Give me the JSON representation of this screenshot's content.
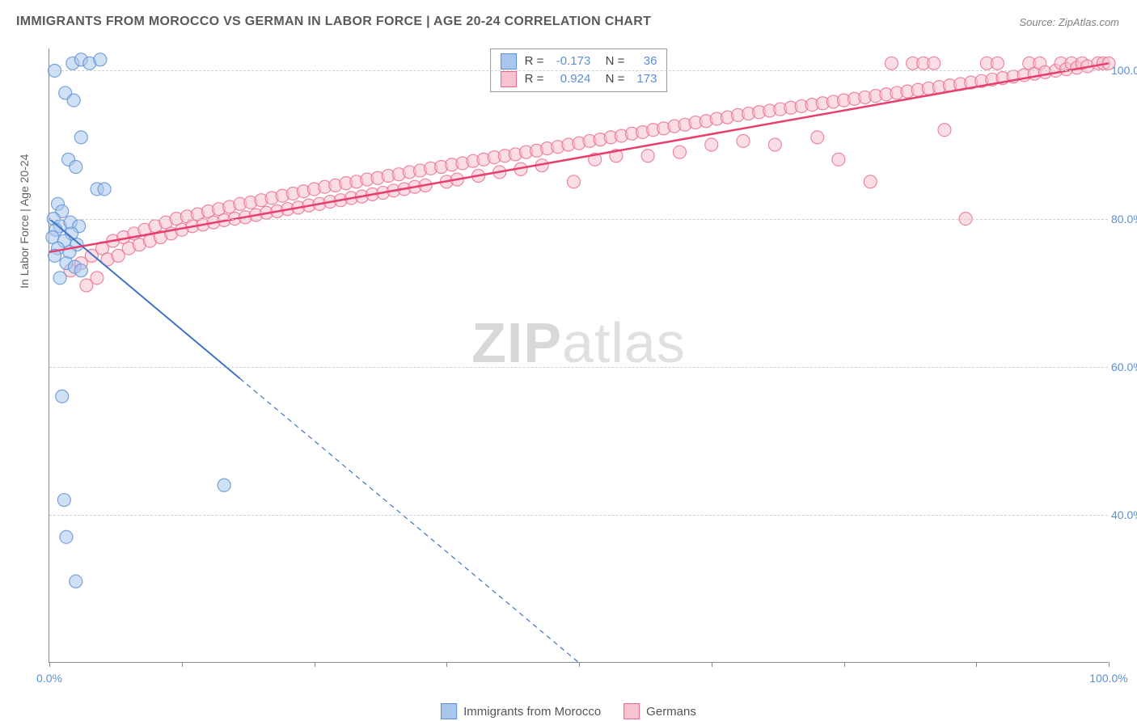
{
  "title": "IMMIGRANTS FROM MOROCCO VS GERMAN IN LABOR FORCE | AGE 20-24 CORRELATION CHART",
  "source": "Source: ZipAtlas.com",
  "y_axis_label": "In Labor Force | Age 20-24",
  "watermark": {
    "bold": "ZIP",
    "rest": "atlas"
  },
  "chart": {
    "type": "scatter-with-trend",
    "xlim": [
      0,
      100
    ],
    "ylim": [
      20,
      103
    ],
    "x_ticks": [
      0,
      12.5,
      25,
      37.5,
      50,
      62.5,
      75,
      87.5,
      100
    ],
    "x_tick_labels": {
      "0": "0.0%",
      "100": "100.0%"
    },
    "y_gridlines": [
      40,
      60,
      80,
      100
    ],
    "y_tick_labels": {
      "40": "40.0%",
      "60": "60.0%",
      "80": "80.0%",
      "100": "100.0%"
    },
    "background_color": "#ffffff",
    "grid_color": "#d0d0d0",
    "marker_radius": 8,
    "marker_opacity": 0.55,
    "series": [
      {
        "name": "Immigrants from Morocco",
        "fill_color": "#a9c7ec",
        "stroke_color": "#5b8fd6",
        "trend": {
          "x1": 0,
          "y1": 80,
          "x2": 50,
          "y2": 20,
          "solid_until_x": 18,
          "color": "#3f73c4",
          "width": 2
        },
        "stats": {
          "R": "-0.173",
          "N": "36"
        },
        "points": [
          [
            0.5,
            100
          ],
          [
            2.2,
            101
          ],
          [
            3.0,
            101.5
          ],
          [
            3.8,
            101
          ],
          [
            4.8,
            101.5
          ],
          [
            1.5,
            97
          ],
          [
            2.3,
            96
          ],
          [
            3.0,
            91
          ],
          [
            1.8,
            88
          ],
          [
            2.5,
            87
          ],
          [
            4.5,
            84
          ],
          [
            5.2,
            84
          ],
          [
            0.8,
            82
          ],
          [
            1.2,
            81
          ],
          [
            0.4,
            80
          ],
          [
            1.0,
            79
          ],
          [
            2.0,
            79.5
          ],
          [
            2.8,
            79
          ],
          [
            0.6,
            78.5
          ],
          [
            2.1,
            78
          ],
          [
            0.3,
            77.5
          ],
          [
            1.4,
            77
          ],
          [
            2.6,
            76.5
          ],
          [
            0.8,
            76
          ],
          [
            1.9,
            75.5
          ],
          [
            0.5,
            75
          ],
          [
            1.6,
            74
          ],
          [
            2.4,
            73.5
          ],
          [
            3.0,
            73
          ],
          [
            1.0,
            72
          ],
          [
            1.2,
            56
          ],
          [
            1.4,
            42
          ],
          [
            1.6,
            37
          ],
          [
            2.5,
            31
          ],
          [
            16.5,
            44
          ]
        ]
      },
      {
        "name": "Germans",
        "fill_color": "#f7c3d0",
        "stroke_color": "#e86a8a",
        "trend": {
          "x1": 0,
          "y1": 75.5,
          "x2": 100,
          "y2": 101,
          "solid_until_x": 100,
          "color": "#e83e6b",
          "width": 2.5
        },
        "stats": {
          "R": "0.924",
          "N": "173"
        },
        "points": [
          [
            2,
            73
          ],
          [
            3,
            74
          ],
          [
            3.5,
            71
          ],
          [
            4,
            75
          ],
          [
            4.5,
            72
          ],
          [
            5,
            76
          ],
          [
            5.5,
            74.5
          ],
          [
            6,
            77
          ],
          [
            6.5,
            75
          ],
          [
            7,
            77.5
          ],
          [
            7.5,
            76
          ],
          [
            8,
            78
          ],
          [
            8.5,
            76.5
          ],
          [
            9,
            78.5
          ],
          [
            9.5,
            77
          ],
          [
            10,
            79
          ],
          [
            10.5,
            77.5
          ],
          [
            11,
            79.5
          ],
          [
            11.5,
            78
          ],
          [
            12,
            80
          ],
          [
            12.5,
            78.5
          ],
          [
            13,
            80.3
          ],
          [
            13.5,
            79
          ],
          [
            14,
            80.6
          ],
          [
            14.5,
            79.2
          ],
          [
            15,
            81
          ],
          [
            15.5,
            79.5
          ],
          [
            16,
            81.3
          ],
          [
            16.5,
            79.8
          ],
          [
            17,
            81.6
          ],
          [
            17.5,
            80
          ],
          [
            18,
            82
          ],
          [
            18.5,
            80.2
          ],
          [
            19,
            82.2
          ],
          [
            19.5,
            80.5
          ],
          [
            20,
            82.5
          ],
          [
            20.5,
            80.8
          ],
          [
            21,
            82.8
          ],
          [
            21.5,
            81
          ],
          [
            22,
            83.1
          ],
          [
            22.5,
            81.3
          ],
          [
            23,
            83.4
          ],
          [
            23.5,
            81.5
          ],
          [
            24,
            83.7
          ],
          [
            24.5,
            81.8
          ],
          [
            25,
            84
          ],
          [
            25.5,
            82
          ],
          [
            26,
            84.3
          ],
          [
            26.5,
            82.3
          ],
          [
            27,
            84.5
          ],
          [
            27.5,
            82.5
          ],
          [
            28,
            84.8
          ],
          [
            28.5,
            82.8
          ],
          [
            29,
            85
          ],
          [
            29.5,
            83
          ],
          [
            30,
            85.3
          ],
          [
            30.5,
            83.3
          ],
          [
            31,
            85.5
          ],
          [
            31.5,
            83.5
          ],
          [
            32,
            85.8
          ],
          [
            32.5,
            83.8
          ],
          [
            33,
            86
          ],
          [
            33.5,
            84
          ],
          [
            34,
            86.3
          ],
          [
            34.5,
            84.3
          ],
          [
            35,
            86.5
          ],
          [
            35.5,
            84.5
          ],
          [
            36,
            86.8
          ],
          [
            37,
            87
          ],
          [
            37.5,
            85
          ],
          [
            38,
            87.3
          ],
          [
            38.5,
            85.3
          ],
          [
            39,
            87.5
          ],
          [
            40,
            87.8
          ],
          [
            40.5,
            85.8
          ],
          [
            41,
            88
          ],
          [
            42,
            88.3
          ],
          [
            42.5,
            86.3
          ],
          [
            43,
            88.5
          ],
          [
            44,
            88.7
          ],
          [
            44.5,
            86.7
          ],
          [
            45,
            89
          ],
          [
            46,
            89.2
          ],
          [
            46.5,
            87.2
          ],
          [
            47,
            89.5
          ],
          [
            48,
            89.7
          ],
          [
            49,
            90
          ],
          [
            49.5,
            85
          ],
          [
            50,
            90.2
          ],
          [
            51,
            90.5
          ],
          [
            51.5,
            88
          ],
          [
            52,
            90.7
          ],
          [
            53,
            91
          ],
          [
            53.5,
            88.5
          ],
          [
            54,
            91.2
          ],
          [
            55,
            91.5
          ],
          [
            56,
            91.7
          ],
          [
            56.5,
            88.5
          ],
          [
            57,
            92
          ],
          [
            58,
            92.2
          ],
          [
            59,
            92.5
          ],
          [
            59.5,
            89
          ],
          [
            60,
            92.7
          ],
          [
            61,
            93
          ],
          [
            62,
            93.2
          ],
          [
            62.5,
            90
          ],
          [
            63,
            93.5
          ],
          [
            64,
            93.7
          ],
          [
            65,
            94
          ],
          [
            65.5,
            90.5
          ],
          [
            66,
            94.2
          ],
          [
            67,
            94.4
          ],
          [
            68,
            94.6
          ],
          [
            68.5,
            90
          ],
          [
            69,
            94.8
          ],
          [
            70,
            95
          ],
          [
            71,
            95.2
          ],
          [
            72,
            95.4
          ],
          [
            72.5,
            91
          ],
          [
            73,
            95.6
          ],
          [
            74,
            95.8
          ],
          [
            74.5,
            88
          ],
          [
            75,
            96
          ],
          [
            76,
            96.2
          ],
          [
            77,
            96.4
          ],
          [
            77.5,
            85
          ],
          [
            78,
            96.6
          ],
          [
            79,
            96.8
          ],
          [
            79.5,
            101
          ],
          [
            80,
            97
          ],
          [
            81,
            97.2
          ],
          [
            81.5,
            101
          ],
          [
            82,
            97.4
          ],
          [
            82.5,
            101
          ],
          [
            83,
            97.6
          ],
          [
            83.5,
            101
          ],
          [
            84,
            97.8
          ],
          [
            84.5,
            92
          ],
          [
            85,
            98
          ],
          [
            86,
            98.2
          ],
          [
            86.5,
            80
          ],
          [
            87,
            98.4
          ],
          [
            88,
            98.6
          ],
          [
            88.5,
            101
          ],
          [
            89,
            98.8
          ],
          [
            89.5,
            101
          ],
          [
            90,
            99
          ],
          [
            91,
            99.2
          ],
          [
            92,
            99.4
          ],
          [
            92.5,
            101
          ],
          [
            93,
            99.6
          ],
          [
            93.5,
            101
          ],
          [
            94,
            99.8
          ],
          [
            95,
            100
          ],
          [
            95.5,
            101
          ],
          [
            96,
            100.2
          ],
          [
            96.5,
            101
          ],
          [
            97,
            100.4
          ],
          [
            97.5,
            101
          ],
          [
            98,
            100.6
          ],
          [
            99,
            101
          ],
          [
            99.5,
            101
          ],
          [
            100,
            101
          ]
        ]
      }
    ]
  },
  "bottom_legend": [
    {
      "label": "Immigrants from Morocco",
      "fill": "#a9c7ec",
      "stroke": "#5b8fd6"
    },
    {
      "label": "Germans",
      "fill": "#f7c3d0",
      "stroke": "#e86a8a"
    }
  ]
}
